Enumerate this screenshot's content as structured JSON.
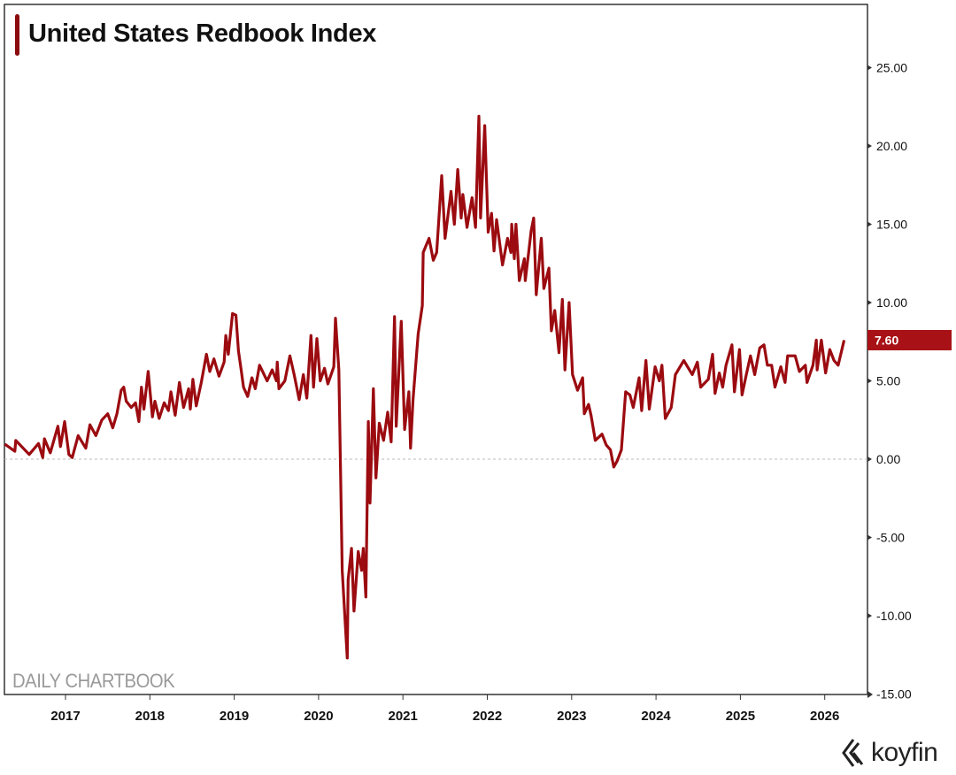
{
  "chart_data": {
    "type": "line",
    "title": "United States Redbook Index",
    "xlabel": "",
    "ylabel": "",
    "x_unit": "year",
    "xlim": [
      2016.28,
      2026.5
    ],
    "ylim": [
      -15,
      29
    ],
    "y_axis_position": "right",
    "y_ticks": [
      25,
      20,
      15,
      10,
      5,
      0,
      -5,
      -10,
      -15
    ],
    "y_tick_labels": [
      "25.00",
      "20.00",
      "15.00",
      "10.00",
      "5.00",
      "0.00",
      "-5.00",
      "-10.00",
      "-15.00"
    ],
    "x_ticks": [
      2017,
      2018,
      2019,
      2020,
      2021,
      2022,
      2023,
      2024,
      2025,
      2026
    ],
    "x_tick_labels": [
      "2017",
      "2018",
      "2019",
      "2020",
      "2021",
      "2022",
      "2023",
      "2024",
      "2025",
      "2026"
    ],
    "zero_line": true,
    "grid": false,
    "line_color": "#9b0b10",
    "last_value_label": "7.60",
    "last_value": 7.6,
    "series": [
      {
        "points": [
          [
            2016.28,
            0.96
          ],
          [
            2016.4,
            0.5
          ],
          [
            2016.41,
            1.2
          ],
          [
            2016.57,
            0.3
          ],
          [
            2016.68,
            1.0
          ],
          [
            2016.73,
            0.1
          ],
          [
            2016.75,
            1.3
          ],
          [
            2016.82,
            0.4
          ],
          [
            2016.91,
            2.1
          ],
          [
            2016.94,
            0.8
          ],
          [
            2016.99,
            2.4
          ],
          [
            2017.04,
            0.3
          ],
          [
            2017.08,
            0.1
          ],
          [
            2017.15,
            1.5
          ],
          [
            2017.24,
            0.7
          ],
          [
            2017.29,
            2.2
          ],
          [
            2017.36,
            1.5
          ],
          [
            2017.43,
            2.5
          ],
          [
            2017.5,
            2.9
          ],
          [
            2017.56,
            2.0
          ],
          [
            2017.61,
            2.9
          ],
          [
            2017.66,
            4.4
          ],
          [
            2017.69,
            4.6
          ],
          [
            2017.72,
            3.7
          ],
          [
            2017.78,
            3.3
          ],
          [
            2017.83,
            3.6
          ],
          [
            2017.87,
            2.4
          ],
          [
            2017.9,
            4.6
          ],
          [
            2017.93,
            3.2
          ],
          [
            2017.98,
            5.6
          ],
          [
            2018.03,
            2.7
          ],
          [
            2018.06,
            3.7
          ],
          [
            2018.11,
            2.6
          ],
          [
            2018.17,
            3.6
          ],
          [
            2018.22,
            3.1
          ],
          [
            2018.25,
            4.3
          ],
          [
            2018.3,
            2.8
          ],
          [
            2018.35,
            4.9
          ],
          [
            2018.4,
            3.3
          ],
          [
            2018.46,
            4.5
          ],
          [
            2018.48,
            3.2
          ],
          [
            2018.51,
            5.1
          ],
          [
            2018.55,
            3.4
          ],
          [
            2018.61,
            4.9
          ],
          [
            2018.67,
            6.7
          ],
          [
            2018.71,
            5.6
          ],
          [
            2018.76,
            6.4
          ],
          [
            2018.82,
            5.3
          ],
          [
            2018.88,
            6.2
          ],
          [
            2018.9,
            7.9
          ],
          [
            2018.93,
            6.7
          ],
          [
            2018.98,
            9.3
          ],
          [
            2019.02,
            9.2
          ],
          [
            2019.05,
            6.9
          ],
          [
            2019.08,
            5.8
          ],
          [
            2019.11,
            4.6
          ],
          [
            2019.16,
            4.0
          ],
          [
            2019.21,
            5.2
          ],
          [
            2019.25,
            4.5
          ],
          [
            2019.3,
            6.0
          ],
          [
            2019.39,
            5.0
          ],
          [
            2019.45,
            5.7
          ],
          [
            2019.5,
            5.0
          ],
          [
            2019.51,
            6.2
          ],
          [
            2019.53,
            4.5
          ],
          [
            2019.6,
            5.0
          ],
          [
            2019.66,
            6.6
          ],
          [
            2019.71,
            5.4
          ],
          [
            2019.77,
            3.8
          ],
          [
            2019.82,
            5.4
          ],
          [
            2019.86,
            3.9
          ],
          [
            2019.91,
            7.9
          ],
          [
            2019.94,
            4.6
          ],
          [
            2019.98,
            7.7
          ],
          [
            2020.02,
            5.0
          ],
          [
            2020.07,
            5.8
          ],
          [
            2020.11,
            4.8
          ],
          [
            2020.18,
            5.9
          ],
          [
            2020.2,
            9.0
          ],
          [
            2020.24,
            5.7
          ],
          [
            2020.28,
            -7.1
          ],
          [
            2020.34,
            -12.7
          ],
          [
            2020.35,
            -7.7
          ],
          [
            2020.39,
            -5.7
          ],
          [
            2020.42,
            -9.7
          ],
          [
            2020.47,
            -5.9
          ],
          [
            2020.51,
            -7.1
          ],
          [
            2020.53,
            -5.7
          ],
          [
            2020.56,
            -8.8
          ],
          [
            2020.59,
            2.4
          ],
          [
            2020.61,
            -2.8
          ],
          [
            2020.65,
            4.5
          ],
          [
            2020.68,
            -1.2
          ],
          [
            2020.72,
            2.3
          ],
          [
            2020.77,
            1.2
          ],
          [
            2020.82,
            3.0
          ],
          [
            2020.86,
            1.1
          ],
          [
            2020.9,
            9.1
          ],
          [
            2020.92,
            2.1
          ],
          [
            2020.98,
            8.8
          ],
          [
            2021.02,
            1.9
          ],
          [
            2021.07,
            4.3
          ],
          [
            2021.09,
            0.7
          ],
          [
            2021.12,
            3.8
          ],
          [
            2021.18,
            8.0
          ],
          [
            2021.23,
            9.8
          ],
          [
            2021.24,
            13.2
          ],
          [
            2021.31,
            14.1
          ],
          [
            2021.36,
            12.7
          ],
          [
            2021.4,
            13.2
          ],
          [
            2021.46,
            18.1
          ],
          [
            2021.5,
            14.1
          ],
          [
            2021.57,
            17.1
          ],
          [
            2021.61,
            15.0
          ],
          [
            2021.65,
            18.5
          ],
          [
            2021.69,
            15.4
          ],
          [
            2021.71,
            16.9
          ],
          [
            2021.76,
            14.8
          ],
          [
            2021.82,
            16.7
          ],
          [
            2021.86,
            14.8
          ],
          [
            2021.9,
            21.9
          ],
          [
            2021.92,
            15.4
          ],
          [
            2021.97,
            21.3
          ],
          [
            2022.01,
            14.5
          ],
          [
            2022.05,
            15.7
          ],
          [
            2022.08,
            13.3
          ],
          [
            2022.11,
            15.3
          ],
          [
            2022.18,
            12.4
          ],
          [
            2022.24,
            14.1
          ],
          [
            2022.28,
            13.2
          ],
          [
            2022.29,
            15.0
          ],
          [
            2022.32,
            12.8
          ],
          [
            2022.34,
            15.0
          ],
          [
            2022.38,
            11.4
          ],
          [
            2022.44,
            12.8
          ],
          [
            2022.45,
            11.4
          ],
          [
            2022.49,
            13.2
          ],
          [
            2022.52,
            14.6
          ],
          [
            2022.55,
            15.4
          ],
          [
            2022.58,
            10.5
          ],
          [
            2022.64,
            14.1
          ],
          [
            2022.67,
            10.9
          ],
          [
            2022.73,
            12.2
          ],
          [
            2022.76,
            8.2
          ],
          [
            2022.8,
            9.5
          ],
          [
            2022.85,
            6.8
          ],
          [
            2022.89,
            10.2
          ],
          [
            2022.92,
            5.7
          ],
          [
            2022.97,
            10.0
          ],
          [
            2023.01,
            5.4
          ],
          [
            2023.07,
            4.4
          ],
          [
            2023.13,
            5.2
          ],
          [
            2023.15,
            2.9
          ],
          [
            2023.2,
            3.5
          ],
          [
            2023.23,
            2.8
          ],
          [
            2023.28,
            1.2
          ],
          [
            2023.36,
            1.6
          ],
          [
            2023.41,
            0.9
          ],
          [
            2023.46,
            0.6
          ],
          [
            2023.5,
            -0.5
          ],
          [
            2023.54,
            -0.1
          ],
          [
            2023.59,
            0.6
          ],
          [
            2023.64,
            4.3
          ],
          [
            2023.69,
            4.1
          ],
          [
            2023.73,
            3.3
          ],
          [
            2023.8,
            5.2
          ],
          [
            2023.83,
            3.1
          ],
          [
            2023.88,
            6.3
          ],
          [
            2023.92,
            3.2
          ],
          [
            2023.99,
            5.9
          ],
          [
            2024.04,
            5.0
          ],
          [
            2024.07,
            6.0
          ],
          [
            2024.11,
            2.6
          ],
          [
            2024.18,
            3.3
          ],
          [
            2024.23,
            5.4
          ],
          [
            2024.33,
            6.3
          ],
          [
            2024.43,
            5.4
          ],
          [
            2024.49,
            6.2
          ],
          [
            2024.53,
            4.6
          ],
          [
            2024.62,
            5.1
          ],
          [
            2024.67,
            6.7
          ],
          [
            2024.7,
            4.2
          ],
          [
            2024.75,
            5.5
          ],
          [
            2024.79,
            4.6
          ],
          [
            2024.83,
            6.0
          ],
          [
            2024.9,
            7.3
          ],
          [
            2024.93,
            4.3
          ],
          [
            2024.99,
            7.0
          ],
          [
            2025.02,
            4.1
          ],
          [
            2025.07,
            5.4
          ],
          [
            2025.12,
            6.6
          ],
          [
            2025.17,
            5.4
          ],
          [
            2025.23,
            7.1
          ],
          [
            2025.28,
            7.3
          ],
          [
            2025.32,
            6.0
          ],
          [
            2025.37,
            6.0
          ],
          [
            2025.41,
            4.6
          ],
          [
            2025.48,
            5.9
          ],
          [
            2025.53,
            4.9
          ],
          [
            2025.56,
            6.6
          ],
          [
            2025.65,
            6.6
          ],
          [
            2025.7,
            5.6
          ],
          [
            2025.77,
            6.0
          ],
          [
            2025.79,
            4.9
          ],
          [
            2025.86,
            6.0
          ],
          [
            2025.9,
            7.6
          ],
          [
            2025.91,
            5.7
          ],
          [
            2025.96,
            7.6
          ],
          [
            2026.01,
            5.5
          ],
          [
            2026.06,
            7.0
          ],
          [
            2026.11,
            6.3
          ],
          [
            2026.16,
            6.0
          ],
          [
            2026.23,
            7.6
          ]
        ]
      }
    ]
  },
  "watermark": "DAILY CHARTBOOK",
  "logo": {
    "text": "koyfin"
  }
}
